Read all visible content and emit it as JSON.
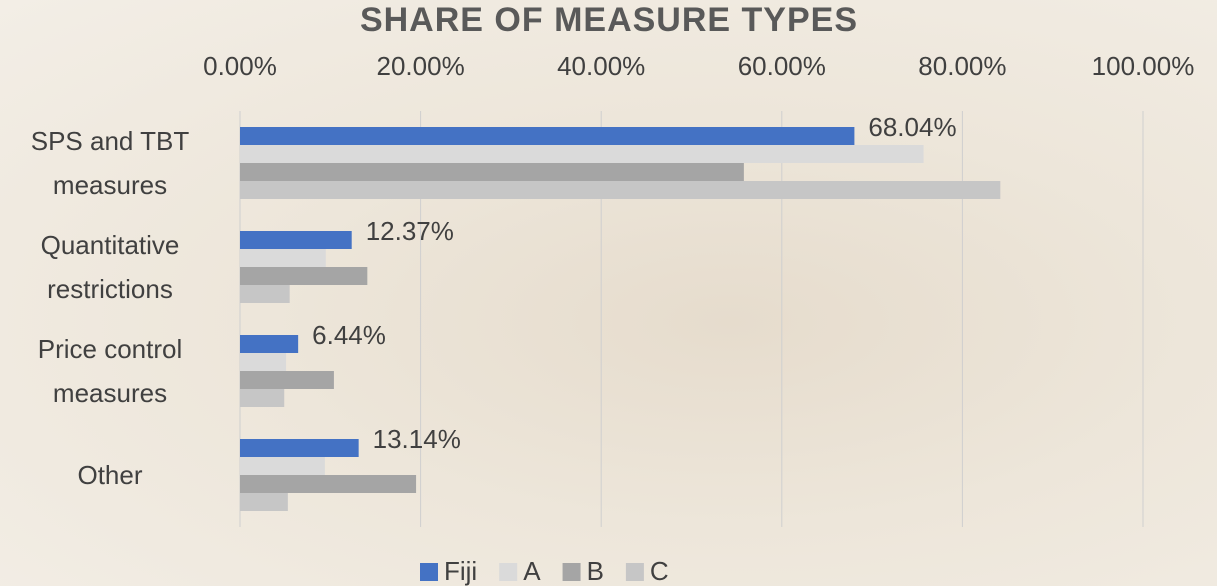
{
  "chart_data": {
    "type": "hbar",
    "title": "SHARE OF MEASURE TYPES",
    "categories": [
      "SPS and TBT measures",
      "Quantitative restrictions",
      "Price control measures",
      "Other"
    ],
    "series": [
      {
        "name": "Fiji",
        "color": "#4472c4",
        "values": [
          68.04,
          12.37,
          6.44,
          13.14
        ],
        "value_labels": [
          "68.04%",
          "12.37%",
          "6.44%",
          "13.14%"
        ]
      },
      {
        "name": "A",
        "color": "#dadada",
        "values": [
          75.7,
          9.5,
          5.1,
          9.4
        ]
      },
      {
        "name": "B",
        "color": "#a5a5a5",
        "values": [
          55.8,
          14.1,
          10.4,
          19.5
        ]
      },
      {
        "name": "C",
        "color": "#c6c6c6",
        "values": [
          84.2,
          5.5,
          4.9,
          5.3
        ]
      }
    ],
    "xlim": [
      0,
      100
    ],
    "xticks": [
      {
        "value": 0,
        "label": "0.00%"
      },
      {
        "value": 20,
        "label": "20.00%"
      },
      {
        "value": 40,
        "label": "40.00%"
      },
      {
        "value": 60,
        "label": "60.00%"
      },
      {
        "value": 80,
        "label": "80.00%"
      },
      {
        "value": 100,
        "label": "100.00%"
      }
    ],
    "grid": true,
    "legend": "bottom"
  }
}
